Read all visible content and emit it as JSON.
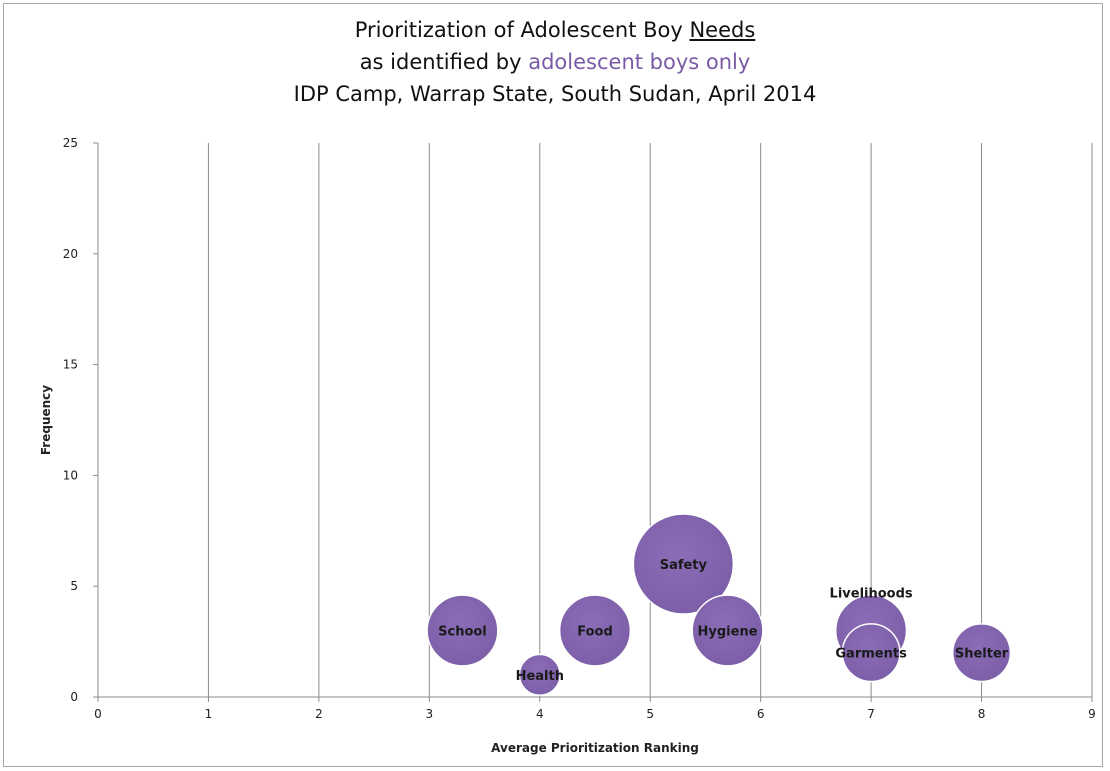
{
  "title": {
    "line1_a": "Prioritization of Adolescent Boy ",
    "line1_b": "Needs",
    "line2_a": "as identified by ",
    "line2_b": "adolescent boys only",
    "line3": "IDP Camp, Warrap State, South Sudan, April 2014"
  },
  "chart_data": {
    "type": "bubble",
    "xlabel": "Average Prioritization Ranking",
    "ylabel": "Frequency",
    "xlim": [
      0,
      9
    ],
    "ylim": [
      0,
      25
    ],
    "xticks": [
      0,
      1,
      2,
      3,
      4,
      5,
      6,
      7,
      8,
      9
    ],
    "yticks": [
      0,
      5,
      10,
      15,
      20,
      25
    ],
    "grid": "vertical",
    "bubble_color": "#7b5ea7",
    "points": [
      {
        "label": "School",
        "x": 3.3,
        "y": 3,
        "size": 3
      },
      {
        "label": "Health",
        "x": 4.0,
        "y": 1,
        "size": 1
      },
      {
        "label": "Food",
        "x": 4.5,
        "y": 3,
        "size": 3
      },
      {
        "label": "Safety",
        "x": 5.3,
        "y": 6,
        "size": 6
      },
      {
        "label": "Hygiene",
        "x": 5.7,
        "y": 3,
        "size": 3
      },
      {
        "label": "Livelihoods",
        "x": 7.0,
        "y": 3,
        "size": 3
      },
      {
        "label": "Garments",
        "x": 7.0,
        "y": 2,
        "size": 2
      },
      {
        "label": "Shelter",
        "x": 8.0,
        "y": 2,
        "size": 2
      }
    ]
  }
}
